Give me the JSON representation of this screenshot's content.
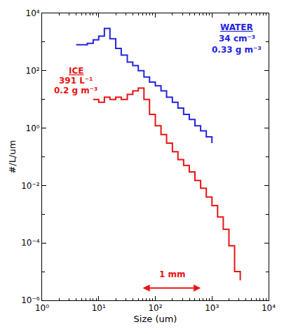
{
  "chart_data": {
    "type": "line",
    "line_style": "step",
    "log": true,
    "grid": false,
    "x_label": "Size (um)",
    "y_label": "#/L/um",
    "xlim": [
      1,
      10000
    ],
    "ylim": [
      1e-06,
      10000
    ],
    "xticks": [
      {
        "value": 1,
        "label": "10⁰"
      },
      {
        "value": 10,
        "label": "10¹"
      },
      {
        "value": 100,
        "label": "10²"
      },
      {
        "value": 1000,
        "label": "10³"
      },
      {
        "value": 10000,
        "label": "10⁴"
      }
    ],
    "yticks": [
      {
        "value": 1e-06,
        "label": "10⁻⁶"
      },
      {
        "value": 0.0001,
        "label": "10⁻⁴"
      },
      {
        "value": 0.01,
        "label": "10⁻²"
      },
      {
        "value": 1,
        "label": "10⁰"
      },
      {
        "value": 100,
        "label": "10²"
      },
      {
        "value": 10000,
        "label": "10⁴"
      }
    ],
    "x": [
      4,
      5,
      6.3,
      8,
      10,
      12.6,
      15.8,
      20,
      25,
      32,
      40,
      50,
      63,
      79,
      100,
      126,
      158,
      200,
      251,
      316,
      398,
      501,
      631,
      794,
      1000,
      1259,
      1585,
      1995,
      2512,
      3162
    ],
    "series": [
      {
        "name": "WATER",
        "color": "#2424e0",
        "values": [
          800,
          800,
          900,
          1200,
          1600,
          3000,
          1300,
          600,
          350,
          200,
          150,
          100,
          60,
          40,
          30,
          20,
          12,
          8,
          5,
          3,
          2,
          1.2,
          0.8,
          0.5,
          0.3,
          null,
          null,
          null,
          null,
          null
        ]
      },
      {
        "name": "ICE",
        "color": "#e81414",
        "values": [
          null,
          null,
          null,
          10,
          8,
          12,
          10,
          12,
          10,
          15,
          20,
          25,
          10,
          3,
          1.2,
          0.6,
          0.3,
          0.15,
          0.08,
          0.05,
          0.03,
          0.015,
          0.008,
          0.004,
          0.002,
          0.0008,
          0.0003,
          8e-05,
          1e-05,
          5e-06
        ]
      }
    ],
    "annotations": [
      {
        "text": "34 cm⁻³",
        "color": "#2424e0"
      },
      {
        "text": "0.33 g m⁻³",
        "color": "#2424e0"
      },
      {
        "text": "391 L⁻¹",
        "color": "#e81414"
      },
      {
        "text": "0.2 g m⁻³",
        "color": "#e81414"
      },
      {
        "text": "1 mm",
        "color": "#e81414"
      }
    ]
  }
}
